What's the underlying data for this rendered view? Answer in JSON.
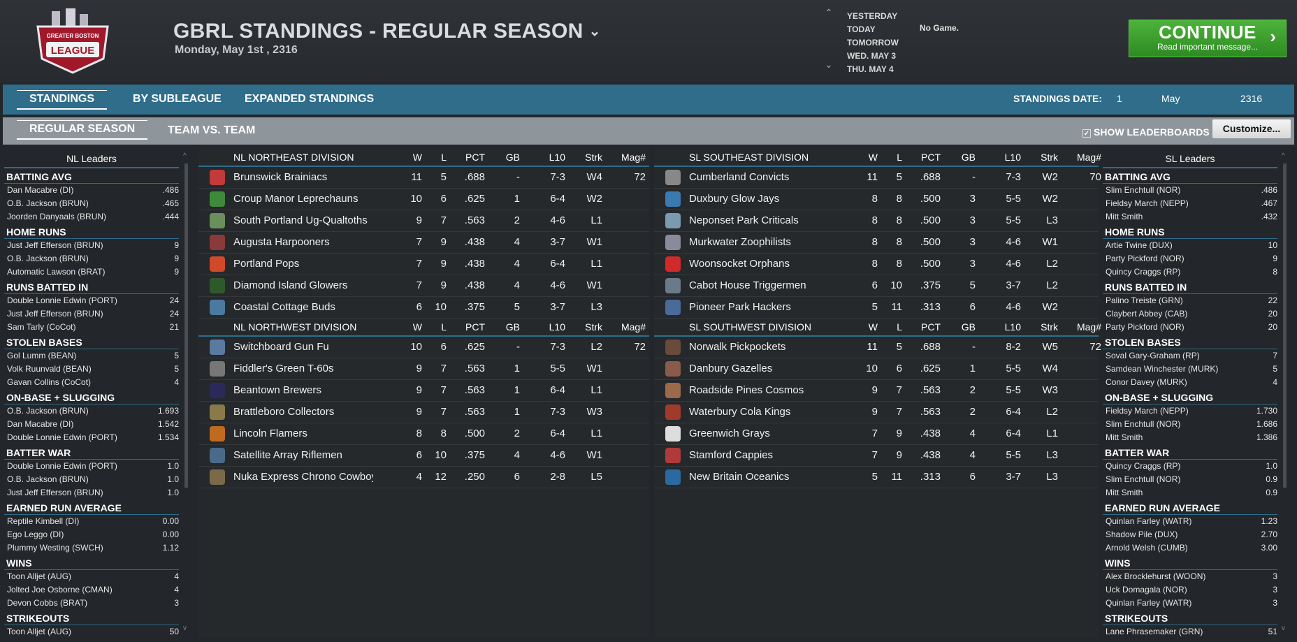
{
  "header": {
    "logo_text": "GREATER BOSTON ROCKET LEAGUE",
    "title": "GBRL STANDINGS - REGULAR SEASON",
    "date": "Monday, May 1st , 2316",
    "days": [
      "YESTERDAY",
      "TODAY",
      "TOMORROW",
      "WED. MAY 3",
      "THU. MAY 4"
    ],
    "no_game": "No Game.",
    "continue_label": "CONTINUE",
    "continue_sub": "Read important message..."
  },
  "tabs": {
    "standings": "STANDINGS",
    "by_subleague": "BY SUBLEAGUE",
    "expanded": "EXPANDED STANDINGS",
    "date_label": "STANDINGS DATE:",
    "date_day": "1",
    "date_month": "May",
    "date_year": "2316"
  },
  "subtabs": {
    "regular": "REGULAR SEASON",
    "team_vs": "TEAM VS. TEAM",
    "show_leaderboards": "SHOW LEADERBOARDS",
    "customize": "Customize..."
  },
  "colors": {
    "accent": "#2f6d8a",
    "continue": "#3ba22e"
  },
  "nl_leaders": {
    "title": "NL Leaders",
    "cats": [
      {
        "name": "BATTING AVG",
        "rows": [
          [
            "Dan Macabre (DI)",
            ".486"
          ],
          [
            "O.B. Jackson (BRUN)",
            ".465"
          ],
          [
            "Joorden Danyaals (BRUN)",
            ".444"
          ]
        ]
      },
      {
        "name": "HOME RUNS",
        "rows": [
          [
            "Just Jeff Efferson (BRUN)",
            "9"
          ],
          [
            "O.B. Jackson (BRUN)",
            "9"
          ],
          [
            "Automatic Lawson (BRAT)",
            "9"
          ]
        ]
      },
      {
        "name": "RUNS BATTED IN",
        "rows": [
          [
            "Double Lonnie Edwin (PORT)",
            "24"
          ],
          [
            "Just Jeff Efferson (BRUN)",
            "24"
          ],
          [
            "Sam Tarly (CoCot)",
            "21"
          ]
        ]
      },
      {
        "name": "STOLEN BASES",
        "rows": [
          [
            "Gol Lumm (BEAN)",
            "5"
          ],
          [
            "Volk Ruunvald (BEAN)",
            "5"
          ],
          [
            "Gavan Collins (CoCot)",
            "4"
          ]
        ]
      },
      {
        "name": "ON-BASE + SLUGGING",
        "rows": [
          [
            "O.B. Jackson (BRUN)",
            "1.693"
          ],
          [
            "Dan Macabre (DI)",
            "1.542"
          ],
          [
            "Double Lonnie Edwin (PORT)",
            "1.534"
          ]
        ]
      },
      {
        "name": "BATTER WAR",
        "rows": [
          [
            "Double Lonnie Edwin (PORT)",
            "1.0"
          ],
          [
            "O.B. Jackson (BRUN)",
            "1.0"
          ],
          [
            "Just Jeff Efferson (BRUN)",
            "1.0"
          ]
        ]
      },
      {
        "name": "EARNED RUN AVERAGE",
        "rows": [
          [
            "Reptile Kimbell (DI)",
            "0.00"
          ],
          [
            "Ego Leggo (DI)",
            "0.00"
          ],
          [
            "Plummy Westing (SWCH)",
            "1.12"
          ]
        ]
      },
      {
        "name": "WINS",
        "rows": [
          [
            "Toon Alljet (AUG)",
            "4"
          ],
          [
            "Jolted Joe Osborne (CMAN)",
            "4"
          ],
          [
            "Devon Cobbs (BRAT)",
            "3"
          ]
        ]
      },
      {
        "name": "STRIKEOUTS",
        "rows": [
          [
            "Toon Alljet (AUG)",
            "50"
          ]
        ]
      }
    ]
  },
  "sl_leaders": {
    "title": "SL Leaders",
    "cats": [
      {
        "name": "BATTING AVG",
        "rows": [
          [
            "Slim Enchtull (NOR)",
            ".486"
          ],
          [
            "Fieldsy March (NEPP)",
            ".467"
          ],
          [
            "Mitt Smith",
            ".432"
          ]
        ]
      },
      {
        "name": "HOME RUNS",
        "rows": [
          [
            "Artie Twine (DUX)",
            "10"
          ],
          [
            "Party Pickford (NOR)",
            "9"
          ],
          [
            "Quincy Craggs (RP)",
            "8"
          ]
        ]
      },
      {
        "name": "RUNS BATTED IN",
        "rows": [
          [
            "Palino Treiste (GRN)",
            "22"
          ],
          [
            "Claybert Abbey (CAB)",
            "20"
          ],
          [
            "Party Pickford (NOR)",
            "20"
          ]
        ]
      },
      {
        "name": "STOLEN BASES",
        "rows": [
          [
            "Soval Gary-Graham (RP)",
            "7"
          ],
          [
            "Samdean Winchester (MURK)",
            "5"
          ],
          [
            "Conor Davey (MURK)",
            "4"
          ]
        ]
      },
      {
        "name": "ON-BASE + SLUGGING",
        "rows": [
          [
            "Fieldsy March (NEPP)",
            "1.730"
          ],
          [
            "Slim Enchtull (NOR)",
            "1.686"
          ],
          [
            "Mitt Smith",
            "1.386"
          ]
        ]
      },
      {
        "name": "BATTER WAR",
        "rows": [
          [
            "Quincy Craggs (RP)",
            "1.0"
          ],
          [
            "Slim Enchtull (NOR)",
            "0.9"
          ],
          [
            "Mitt Smith",
            "0.9"
          ]
        ]
      },
      {
        "name": "EARNED RUN AVERAGE",
        "rows": [
          [
            "Quinlan Farley (WATR)",
            "1.23"
          ],
          [
            "Shadow Pile (DUX)",
            "2.70"
          ],
          [
            "Arnold Welsh (CUMB)",
            "3.00"
          ]
        ]
      },
      {
        "name": "WINS",
        "rows": [
          [
            "Alex Brocklehurst (WOON)",
            "3"
          ],
          [
            "Uck Domagala (NOR)",
            "3"
          ],
          [
            "Quinlan Farley (WATR)",
            "3"
          ]
        ]
      },
      {
        "name": "STRIKEOUTS",
        "rows": [
          [
            "Lane Phrasemaker (GRN)",
            "51"
          ]
        ]
      }
    ]
  },
  "cols": [
    "W",
    "L",
    "PCT",
    "GB",
    "L10",
    "Strk",
    "Mag#"
  ],
  "left_divs": [
    {
      "name": "NL NORTHEAST DIVISION",
      "teams": [
        [
          "Brunswick Brainiacs",
          "11",
          "5",
          ".688",
          "-",
          "7-3",
          "W4",
          "72",
          "#c33a3a"
        ],
        [
          "Croup Manor Leprechauns",
          "10",
          "6",
          ".625",
          "1",
          "6-4",
          "W2",
          "",
          "#3f8a3a"
        ],
        [
          "South Portland Ug-Qualtoths",
          "9",
          "7",
          ".563",
          "2",
          "4-6",
          "L1",
          "",
          "#6a8f5a"
        ],
        [
          "Augusta Harpooners",
          "7",
          "9",
          ".438",
          "4",
          "3-7",
          "W1",
          "",
          "#8a3a3a"
        ],
        [
          "Portland Pops",
          "7",
          "9",
          ".438",
          "4",
          "6-4",
          "L1",
          "",
          "#d04a2a"
        ],
        [
          "Diamond Island Glowers",
          "7",
          "9",
          ".438",
          "4",
          "4-6",
          "W1",
          "",
          "#2e5a2a"
        ],
        [
          "Coastal Cottage Buds",
          "6",
          "10",
          ".375",
          "5",
          "3-7",
          "L3",
          "",
          "#4a7aa0"
        ]
      ]
    },
    {
      "name": "NL NORTHWEST DIVISION",
      "teams": [
        [
          "Switchboard Gun Fu",
          "10",
          "6",
          ".625",
          "-",
          "7-3",
          "L2",
          "72",
          "#5a7aa0"
        ],
        [
          "Fiddler's Green T-60s",
          "9",
          "7",
          ".563",
          "1",
          "5-5",
          "W1",
          "",
          "#777"
        ],
        [
          "Beantown Brewers",
          "9",
          "7",
          ".563",
          "1",
          "6-4",
          "L1",
          "",
          "#2a2a5a"
        ],
        [
          "Brattleboro Collectors",
          "9",
          "7",
          ".563",
          "1",
          "7-3",
          "W3",
          "",
          "#8a7a4a"
        ],
        [
          "Lincoln Flamers",
          "8",
          "8",
          ".500",
          "2",
          "6-4",
          "L1",
          "",
          "#c06a20"
        ],
        [
          "Satellite Array Riflemen",
          "6",
          "10",
          ".375",
          "4",
          "4-6",
          "W1",
          "",
          "#4a6a8a"
        ],
        [
          "Nuka Express Chrono Cowboys",
          "4",
          "12",
          ".250",
          "6",
          "2-8",
          "L5",
          "",
          "#7a6a4a"
        ]
      ]
    }
  ],
  "right_divs": [
    {
      "name": "SL SOUTHEAST DIVISION",
      "teams": [
        [
          "Cumberland Convicts",
          "11",
          "5",
          ".688",
          "-",
          "7-3",
          "W2",
          "70",
          "#888"
        ],
        [
          "Duxbury Glow Jays",
          "8",
          "8",
          ".500",
          "3",
          "5-5",
          "W2",
          "",
          "#3a7ab0"
        ],
        [
          "Neponset Park Criticals",
          "8",
          "8",
          ".500",
          "3",
          "5-5",
          "L3",
          "",
          "#7a9ab0"
        ],
        [
          "Murkwater Zoophilists",
          "8",
          "8",
          ".500",
          "3",
          "4-6",
          "W1",
          "",
          "#8a8a9a"
        ],
        [
          "Woonsocket Orphans",
          "8",
          "8",
          ".500",
          "3",
          "4-6",
          "L2",
          "",
          "#d02a2a"
        ],
        [
          "Cabot House Triggermen",
          "6",
          "10",
          ".375",
          "5",
          "3-7",
          "L2",
          "",
          "#6a7a8a"
        ],
        [
          "Pioneer Park Hackers",
          "5",
          "11",
          ".313",
          "6",
          "4-6",
          "W2",
          "",
          "#4a6a9a"
        ]
      ]
    },
    {
      "name": "SL SOUTHWEST DIVISION",
      "teams": [
        [
          "Norwalk Pickpockets",
          "11",
          "5",
          ".688",
          "-",
          "8-2",
          "W5",
          "72",
          "#6a4a3a"
        ],
        [
          "Danbury Gazelles",
          "10",
          "6",
          ".625",
          "1",
          "5-5",
          "W4",
          "",
          "#8a5a4a"
        ],
        [
          "Roadside Pines Cosmos",
          "9",
          "7",
          ".563",
          "2",
          "5-5",
          "W3",
          "",
          "#9a6a4a"
        ],
        [
          "Waterbury Cola Kings",
          "9",
          "7",
          ".563",
          "2",
          "6-4",
          "L2",
          "",
          "#a03a2a"
        ],
        [
          "Greenwich Grays",
          "7",
          "9",
          ".438",
          "4",
          "6-4",
          "L1",
          "",
          "#ddd"
        ],
        [
          "Stamford Cappies",
          "7",
          "9",
          ".438",
          "4",
          "5-5",
          "L3",
          "",
          "#b03a3a"
        ],
        [
          "New Britain Oceanics",
          "5",
          "11",
          ".313",
          "6",
          "3-7",
          "L3",
          "",
          "#2a6aa0"
        ]
      ]
    }
  ]
}
